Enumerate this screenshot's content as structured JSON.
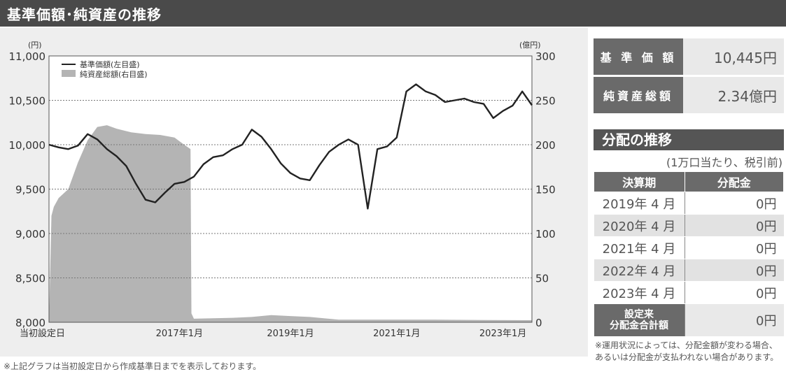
{
  "header": {
    "title": "基準価額･純資産の推移"
  },
  "notes": {
    "left": "※上記グラフは当初設定日から作成基準日までを表示しております。",
    "right": "※運用状況によっては、分配金額が変わる場合、あるいは分配金が支払われない場合があります。"
  },
  "kpi": {
    "nav_label": "基 準 価 額",
    "nav_value": "10,445円",
    "aum_label": "純資産総額",
    "aum_value": "2.34億円"
  },
  "distribution": {
    "title": "分配の推移",
    "unit": "(1万口当たり、税引前)",
    "col_period": "決算期",
    "col_amount": "分配金",
    "rows": [
      {
        "period": "2019年 4 月",
        "amount": "0円"
      },
      {
        "period": "2020年 4 月",
        "amount": "0円"
      },
      {
        "period": "2021年 4 月",
        "amount": "0円"
      },
      {
        "period": "2022年 4 月",
        "amount": "0円"
      },
      {
        "period": "2023年 4 月",
        "amount": "0円"
      }
    ],
    "total_label_1": "設定来",
    "total_label_2": "分配金合計額",
    "total_amount": "0円"
  },
  "chart_data": {
    "type": "line",
    "left_axis_unit": "(円)",
    "right_axis_unit": "(億円)",
    "ylim_left": [
      8000,
      11000
    ],
    "ylim_right": [
      0,
      300
    ],
    "y_ticks_left": [
      "8,000",
      "8,500",
      "9,000",
      "9,500",
      "10,000",
      "10,500",
      "11,000"
    ],
    "y_ticks_right": [
      "0",
      "50",
      "100",
      "150",
      "200",
      "250",
      "300"
    ],
    "x_labels": [
      "当初設定日",
      "2017年1月",
      "2019年1月",
      "2021年1月",
      "2023年1月"
    ],
    "grid": true,
    "legend_position": "top-left",
    "colors": {
      "line": "#222222",
      "area": "#b4b4b4"
    },
    "series": [
      {
        "name": "基準価額(左目盛)",
        "axis": "left",
        "kind": "line",
        "x": [
          0,
          0.02,
          0.04,
          0.06,
          0.08,
          0.1,
          0.12,
          0.14,
          0.16,
          0.18,
          0.2,
          0.22,
          0.24,
          0.26,
          0.28,
          0.3,
          0.32,
          0.34,
          0.36,
          0.38,
          0.4,
          0.42,
          0.44,
          0.46,
          0.48,
          0.5,
          0.52,
          0.54,
          0.56,
          0.58,
          0.6,
          0.62,
          0.64,
          0.66,
          0.68,
          0.7,
          0.72,
          0.74,
          0.76,
          0.78,
          0.8,
          0.82,
          0.84,
          0.86,
          0.88,
          0.9,
          0.92,
          0.94,
          0.96,
          0.98,
          1.0
        ],
        "values": [
          10000,
          9970,
          9950,
          9990,
          10120,
          10060,
          9950,
          9870,
          9760,
          9560,
          9380,
          9350,
          9460,
          9560,
          9580,
          9640,
          9780,
          9860,
          9880,
          9950,
          10000,
          10170,
          10090,
          9950,
          9790,
          9680,
          9620,
          9600,
          9770,
          9920,
          10000,
          10060,
          10000,
          9280,
          9950,
          9980,
          10080,
          10600,
          10680,
          10600,
          10560,
          10480,
          10500,
          10520,
          10480,
          10460,
          10300,
          10380,
          10440,
          10600,
          10445
        ]
      },
      {
        "name": "純資産総額(右目盛)",
        "axis": "right",
        "kind": "area",
        "x": [
          0,
          0.005,
          0.01,
          0.02,
          0.04,
          0.06,
          0.08,
          0.1,
          0.12,
          0.14,
          0.17,
          0.2,
          0.23,
          0.26,
          0.28,
          0.293,
          0.295,
          0.3,
          0.38,
          0.42,
          0.46,
          0.5,
          0.54,
          0.6,
          0.7,
          0.8,
          0.9,
          1.0
        ],
        "values": [
          0,
          120,
          130,
          140,
          150,
          180,
          205,
          220,
          222,
          218,
          214,
          212,
          211,
          208,
          200,
          195,
          10,
          4,
          5,
          6,
          8,
          7,
          6,
          3,
          3,
          3,
          2.5,
          2.34
        ]
      }
    ]
  }
}
